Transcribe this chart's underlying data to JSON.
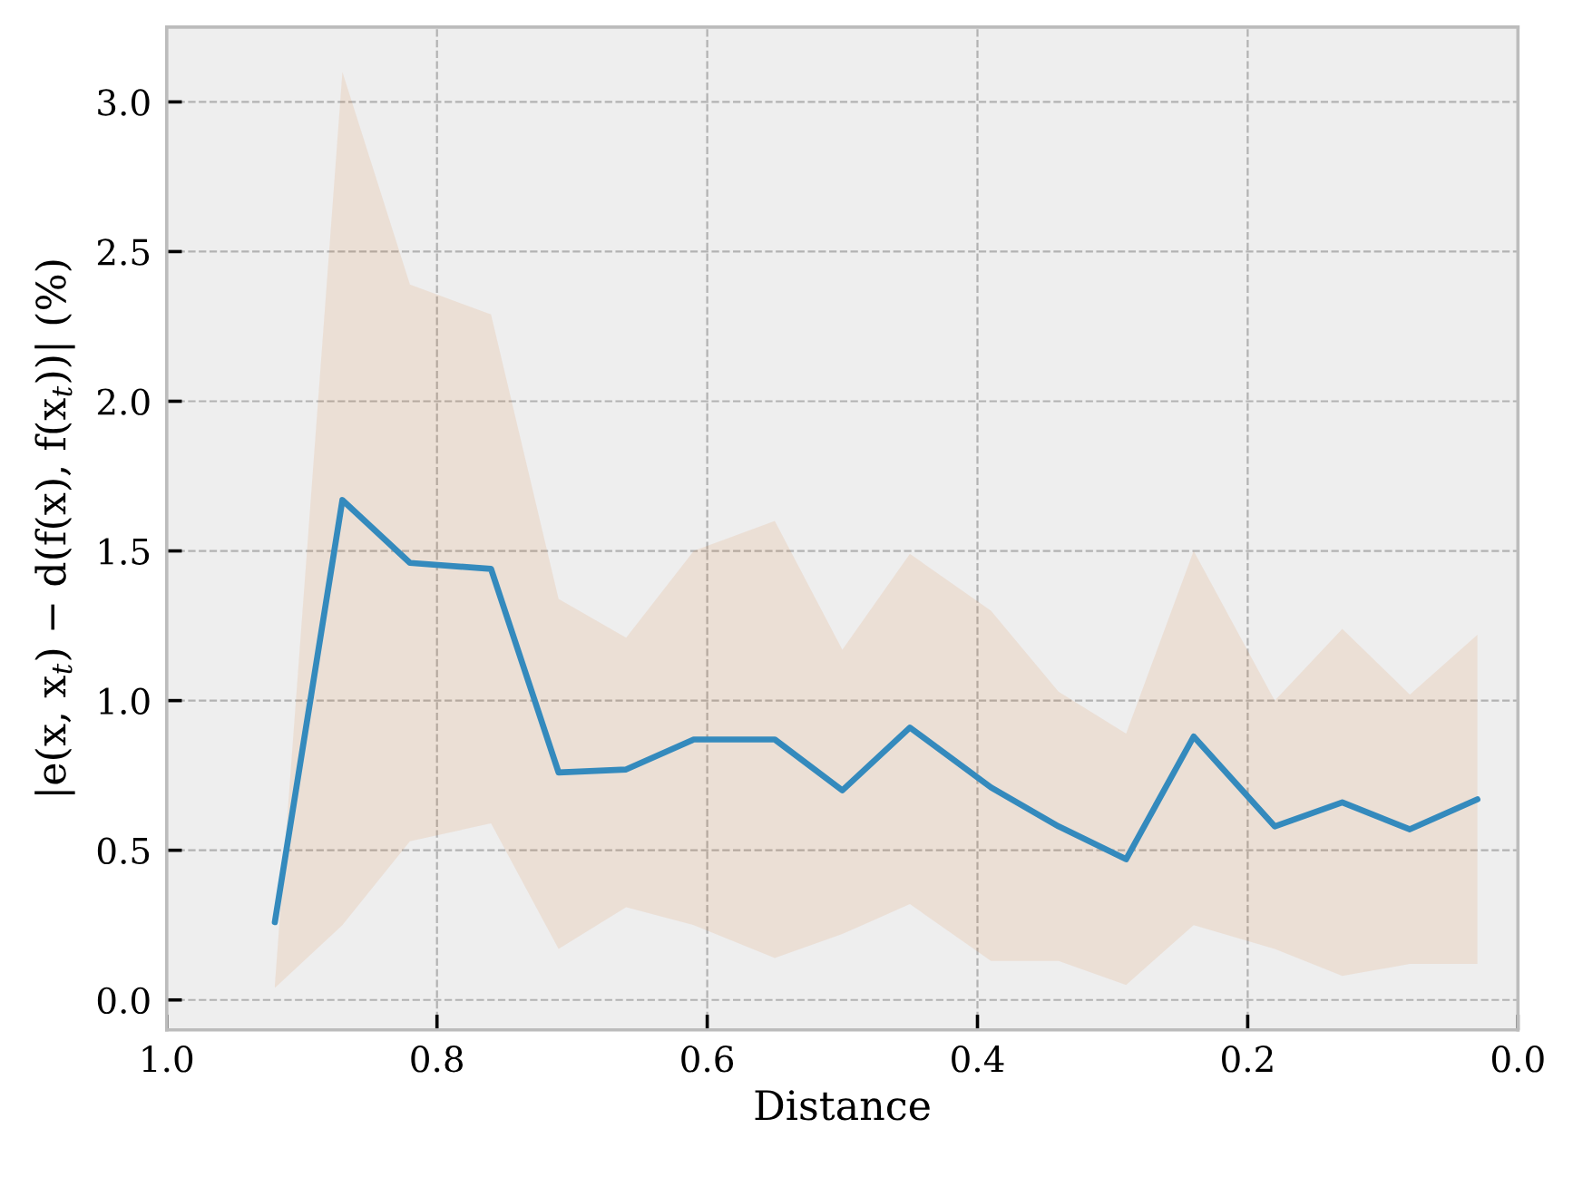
{
  "chart_data": {
    "type": "line",
    "xlabel": "Distance",
    "ylabel": "|e(x, x$_{t}$) − d(f(x), f(x$_{t}$))| (%)",
    "x": [
      0.92,
      0.87,
      0.82,
      0.76,
      0.71,
      0.66,
      0.61,
      0.55,
      0.5,
      0.45,
      0.39,
      0.34,
      0.29,
      0.24,
      0.18,
      0.13,
      0.08,
      0.03
    ],
    "series": [
      {
        "color": "#348abd",
        "values": [
          0.26,
          1.67,
          1.46,
          1.44,
          0.76,
          0.77,
          0.87,
          0.87,
          0.7,
          0.91,
          0.71,
          0.58,
          0.47,
          0.88,
          0.58,
          0.66,
          0.57,
          0.67
        ],
        "lower": [
          0.04,
          0.25,
          0.53,
          0.59,
          0.17,
          0.31,
          0.25,
          0.14,
          0.22,
          0.32,
          0.13,
          0.13,
          0.05,
          0.25,
          0.17,
          0.08,
          0.12,
          0.12
        ],
        "upper": [
          0.05,
          3.1,
          2.39,
          2.29,
          1.34,
          1.21,
          1.5,
          1.6,
          1.17,
          1.49,
          1.3,
          1.03,
          0.89,
          1.5,
          1.0,
          1.24,
          1.02,
          1.22
        ]
      }
    ],
    "xlim": [
      1.0,
      0.0
    ],
    "xticks": [
      {
        "value": 1,
        "label": "1.0"
      },
      0.8,
      0.6,
      0.4,
      0.2,
      {
        "value": 0,
        "label": "0.0"
      }
    ],
    "ylim": [
      -0.1,
      3.25
    ],
    "yticks": [
      {
        "value": 0,
        "label": "0.0"
      },
      0.5,
      {
        "value": 1,
        "label": "1.0"
      },
      1.5,
      {
        "value": 2,
        "label": "2.0"
      },
      2.5,
      {
        "value": 3,
        "label": "3.0"
      }
    ],
    "grid": true
  }
}
